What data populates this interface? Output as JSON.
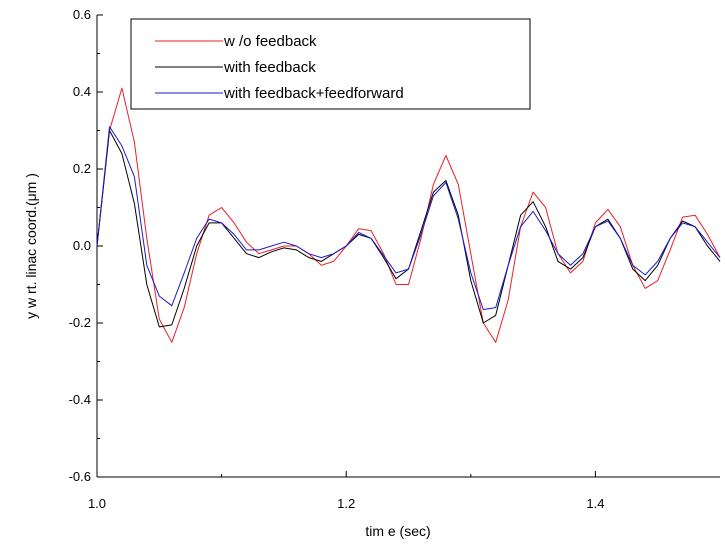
{
  "chart_data": {
    "type": "line",
    "title": "",
    "xlabel": "tim e (sec)",
    "ylabel": "y w rt. linac coord.(μm )",
    "xlim": [
      1.0,
      1.5
    ],
    "ylim": [
      -0.6,
      0.6
    ],
    "x_ticks": [
      {
        "value": 1.0,
        "label": "1.0"
      },
      {
        "value": 1.2,
        "label": "1.2"
      },
      {
        "value": 1.4,
        "label": "1.4"
      }
    ],
    "y_ticks": [
      {
        "value": 0.6,
        "label": "0.6"
      },
      {
        "value": 0.4,
        "label": "0.4"
      },
      {
        "value": 0.2,
        "label": "0.2"
      },
      {
        "value": 0.0,
        "label": "0.0"
      },
      {
        "value": -0.2,
        "label": "-0.2"
      },
      {
        "value": -0.4,
        "label": "-0.4"
      },
      {
        "value": -0.6,
        "label": "-0.6"
      }
    ],
    "grid": false,
    "legend_position": "top-left",
    "x": [
      1.0,
      1.01,
      1.02,
      1.03,
      1.04,
      1.05,
      1.06,
      1.07,
      1.08,
      1.09,
      1.1,
      1.11,
      1.12,
      1.13,
      1.14,
      1.15,
      1.16,
      1.17,
      1.18,
      1.19,
      1.2,
      1.21,
      1.22,
      1.23,
      1.24,
      1.25,
      1.26,
      1.27,
      1.28,
      1.29,
      1.3,
      1.31,
      1.32,
      1.33,
      1.34,
      1.35,
      1.36,
      1.37,
      1.38,
      1.39,
      1.4,
      1.41,
      1.42,
      1.43,
      1.44,
      1.45,
      1.46,
      1.47,
      1.48,
      1.49,
      1.5
    ],
    "series": [
      {
        "name": "w /o feedback",
        "color": "#e8202a",
        "values": [
          0.0,
          0.3,
          0.41,
          0.27,
          0.02,
          -0.19,
          -0.25,
          -0.16,
          -0.02,
          0.08,
          0.1,
          0.06,
          0.01,
          -0.02,
          -0.01,
          0.0,
          0.0,
          -0.02,
          -0.05,
          -0.04,
          0.0,
          0.045,
          0.04,
          -0.02,
          -0.1,
          -0.1,
          0.02,
          0.16,
          0.235,
          0.16,
          -0.02,
          -0.2,
          -0.25,
          -0.14,
          0.05,
          0.14,
          0.1,
          -0.02,
          -0.07,
          -0.04,
          0.06,
          0.095,
          0.05,
          -0.05,
          -0.11,
          -0.09,
          -0.01,
          0.075,
          0.08,
          0.03,
          -0.03
        ]
      },
      {
        "name": "with feedback",
        "color": "#000000",
        "values": [
          0.0,
          0.3,
          0.24,
          0.11,
          -0.1,
          -0.21,
          -0.205,
          -0.11,
          0.0,
          0.06,
          0.06,
          0.02,
          -0.02,
          -0.03,
          -0.015,
          -0.005,
          -0.01,
          -0.03,
          -0.04,
          -0.02,
          0.0,
          0.03,
          0.02,
          -0.03,
          -0.085,
          -0.06,
          0.04,
          0.14,
          0.17,
          0.08,
          -0.09,
          -0.2,
          -0.18,
          -0.05,
          0.08,
          0.115,
          0.05,
          -0.04,
          -0.06,
          -0.03,
          0.05,
          0.07,
          0.02,
          -0.06,
          -0.09,
          -0.05,
          0.02,
          0.065,
          0.05,
          0.0,
          -0.04
        ]
      },
      {
        "name": "with feedback+feedforward",
        "color": "#1b1bcc",
        "values": [
          0.0,
          0.31,
          0.26,
          0.18,
          -0.05,
          -0.13,
          -0.155,
          -0.07,
          0.02,
          0.07,
          0.06,
          0.03,
          -0.01,
          -0.01,
          0.0,
          0.01,
          0.0,
          -0.02,
          -0.03,
          -0.02,
          0.0,
          0.035,
          0.02,
          -0.025,
          -0.07,
          -0.06,
          0.03,
          0.13,
          0.165,
          0.07,
          -0.07,
          -0.165,
          -0.16,
          -0.05,
          0.05,
          0.09,
          0.04,
          -0.02,
          -0.05,
          -0.02,
          0.05,
          0.065,
          0.02,
          -0.05,
          -0.075,
          -0.04,
          0.02,
          0.06,
          0.05,
          0.01,
          -0.03
        ]
      }
    ]
  }
}
